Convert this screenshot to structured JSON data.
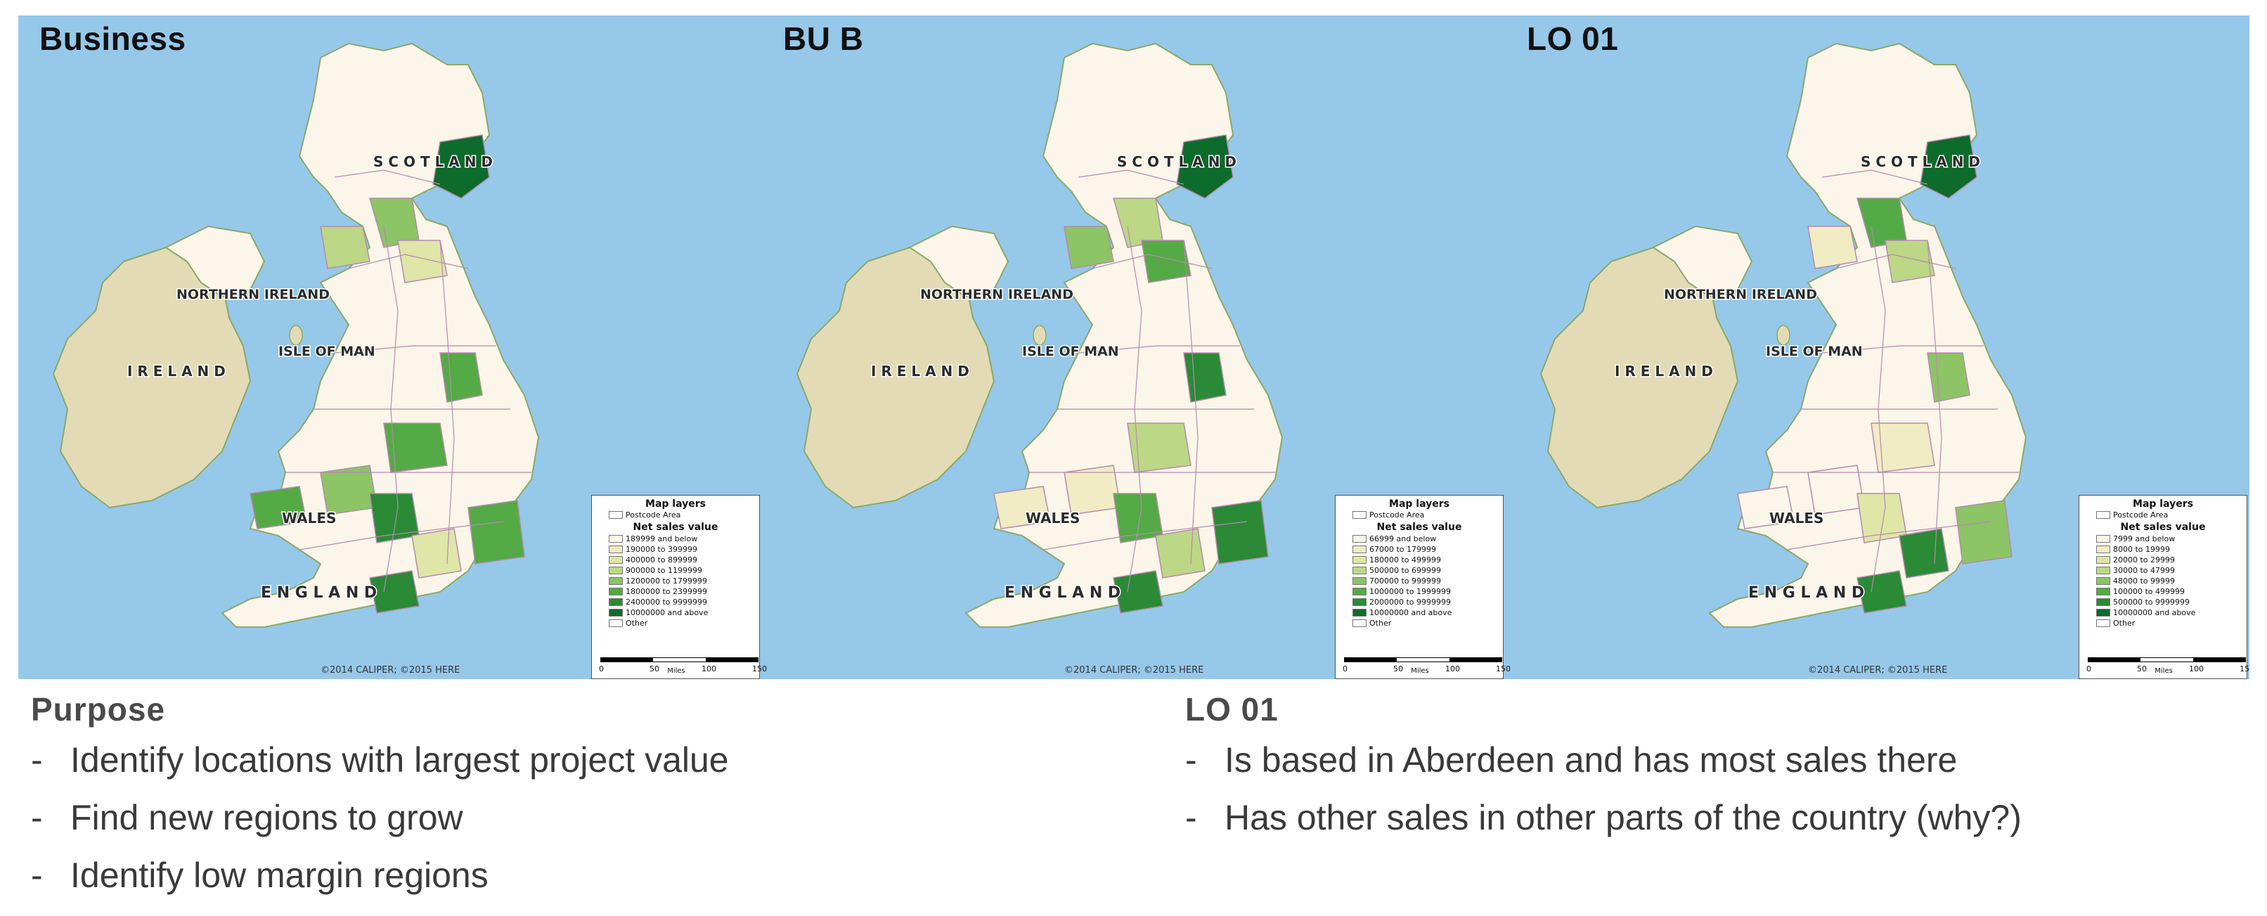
{
  "panels": [
    {
      "title": "Business",
      "legend": {
        "layers_title": "Map layers",
        "layer_item": "Postcode Area",
        "subtitle": "Net sales value",
        "items": [
          {
            "label": "189999 and below",
            "color": "#fbf6e9"
          },
          {
            "label": "190000 to 399999",
            "color": "#f1ecc3"
          },
          {
            "label": "400000 to 899999",
            "color": "#dfe6a7"
          },
          {
            "label": "900000 to 1199999",
            "color": "#bcd785"
          },
          {
            "label": "1200000 to 1799999",
            "color": "#8cc466"
          },
          {
            "label": "1800000 to 2399999",
            "color": "#54aa45"
          },
          {
            "label": "2400000 to 9999999",
            "color": "#2a8a36"
          },
          {
            "label": "10000000 and above",
            "color": "#0d6b2c"
          },
          {
            "label": "Other",
            "color": "#ffffff"
          }
        ]
      }
    },
    {
      "title": "BU B",
      "legend": {
        "layers_title": "Map layers",
        "layer_item": "Postcode Area",
        "subtitle": "Net sales value",
        "items": [
          {
            "label": "66999 and below",
            "color": "#fbf6e9"
          },
          {
            "label": "67000 to 179999",
            "color": "#f1ecc3"
          },
          {
            "label": "180000 to 499999",
            "color": "#dfe6a7"
          },
          {
            "label": "500000 to 699999",
            "color": "#bcd785"
          },
          {
            "label": "700000 to 999999",
            "color": "#8cc466"
          },
          {
            "label": "1000000 to 1999999",
            "color": "#54aa45"
          },
          {
            "label": "2000000 to 9999999",
            "color": "#2a8a36"
          },
          {
            "label": "10000000 and above",
            "color": "#0d6b2c"
          },
          {
            "label": "Other",
            "color": "#ffffff"
          }
        ]
      }
    },
    {
      "title": "LO 01",
      "legend": {
        "layers_title": "Map layers",
        "layer_item": "Postcode Area",
        "subtitle": "Net sales value",
        "items": [
          {
            "label": "7999 and below",
            "color": "#fbf6e9"
          },
          {
            "label": "8000 to 19999",
            "color": "#f1ecc3"
          },
          {
            "label": "20000 to 29999",
            "color": "#dfe6a7"
          },
          {
            "label": "30000 to 47999",
            "color": "#bcd785"
          },
          {
            "label": "48000 to 99999",
            "color": "#8cc466"
          },
          {
            "label": "100000 to 499999",
            "color": "#54aa45"
          },
          {
            "label": "500000 to 9999999",
            "color": "#2a8a36"
          },
          {
            "label": "10000000 and above",
            "color": "#0d6b2c"
          },
          {
            "label": "Other",
            "color": "#ffffff"
          }
        ]
      }
    }
  ],
  "map_labels": {
    "scotland": "S C O T L A N D",
    "northern_ireland": "NORTHERN IRELAND",
    "isle_of_man": "ISLE OF MAN",
    "ireland": "I R E L A N D",
    "wales": "WALES",
    "england": "E N G L A N D",
    "copyright": "©2014 CALIPER; ©2015 HERE"
  },
  "scale": {
    "ticks": [
      "0",
      "50",
      "100",
      "150"
    ],
    "unit": "Miles"
  },
  "colors": {
    "sea": "#96c8ea",
    "land_other": "#e3dbb5",
    "region_border": "#b58ab0"
  },
  "purpose": {
    "heading": "Purpose",
    "items": [
      "Identify locations with largest project value",
      "Find new regions to grow",
      "Identify low margin regions"
    ]
  },
  "lo01_notes": {
    "heading": "LO 01",
    "items": [
      "Is based in Aberdeen and has most sales there",
      "Has other sales in other parts of the country (why?)"
    ]
  }
}
